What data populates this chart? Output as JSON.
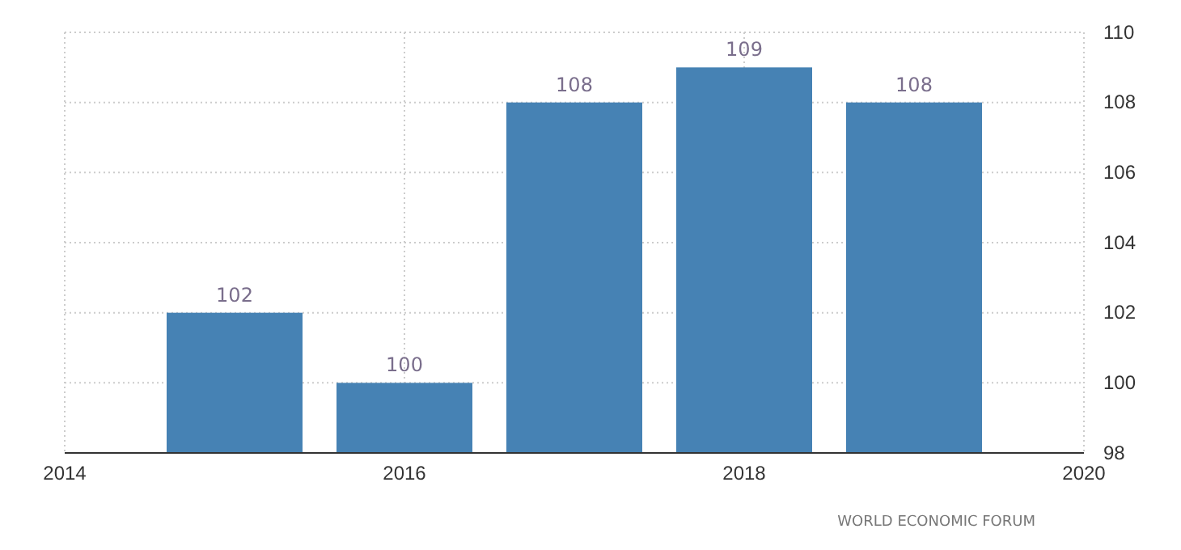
{
  "chart_data": {
    "type": "bar",
    "x": [
      2015,
      2016,
      2017,
      2018,
      2019
    ],
    "values": [
      102,
      100,
      108,
      109,
      108
    ],
    "color": "#4682b4",
    "xlim": [
      2014,
      2020
    ],
    "xticks": [
      2014,
      2016,
      2018,
      2020
    ],
    "ylim": [
      98,
      110
    ],
    "yticks": [
      98,
      100,
      102,
      104,
      106,
      108,
      110
    ],
    "grid": true,
    "data_labels": true,
    "annotations": [
      "WORLD ECONOMIC FORUM"
    ]
  }
}
